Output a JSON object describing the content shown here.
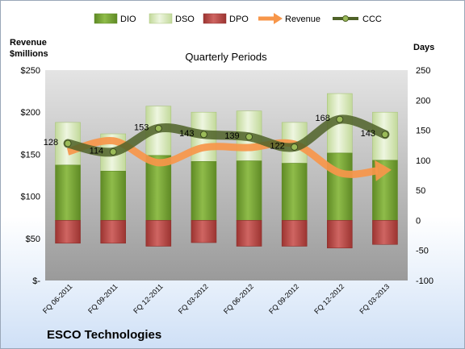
{
  "chart_data": {
    "type": "bar",
    "title": "Quarterly Periods",
    "company": "ESCO Technologies",
    "y_left_label_line1": "Revenue",
    "y_left_label_line2": "$millions",
    "y_right_label": "Days",
    "ylim_left": [
      0,
      250
    ],
    "ylim_right": [
      -100,
      250
    ],
    "y_left_ticks": [
      "$-",
      "$50",
      "$100",
      "$150",
      "$200",
      "$250"
    ],
    "y_left_tick_values": [
      0,
      50,
      100,
      150,
      200,
      250
    ],
    "y_right_ticks": [
      "-100",
      "-50",
      "0",
      "50",
      "100",
      "150",
      "200",
      "250"
    ],
    "y_right_tick_values": [
      -100,
      -50,
      0,
      50,
      100,
      150,
      200,
      250
    ],
    "grid": false,
    "legend_position": "top",
    "categories": [
      "FQ 06-2011",
      "FQ 09-2011",
      "FQ 12-2011",
      "FQ 03-2012",
      "FQ 06-2012",
      "FQ 09-2012",
      "FQ 12-2012",
      "FQ 03-2013"
    ],
    "series": [
      {
        "name": "DIO",
        "axis": "right",
        "kind": "bar",
        "color": "#7aa23a",
        "values": [
          92,
          82,
          108,
          98,
          99,
          95,
          112,
          100
        ]
      },
      {
        "name": "DSO",
        "axis": "right",
        "kind": "bar",
        "color": "#d6e8b4",
        "values": [
          71,
          62,
          82,
          82,
          83,
          68,
          99,
          80
        ]
      },
      {
        "name": "DPO",
        "axis": "right",
        "kind": "bar",
        "color": "#c0504d",
        "values": [
          -38,
          -38,
          -43,
          -37,
          -43,
          -43,
          -46,
          -40
        ]
      },
      {
        "name": "Revenue",
        "axis": "left",
        "kind": "line",
        "color": "#f7964a",
        "values": [
          153,
          166,
          140,
          158,
          158,
          162,
          128,
          131
        ]
      },
      {
        "name": "CCC",
        "axis": "right",
        "kind": "line",
        "color": "#4f6228",
        "values": [
          128,
          114,
          153,
          143,
          139,
          122,
          168,
          143
        ]
      }
    ],
    "data_labels": [
      "128",
      "114",
      "153",
      "143",
      "139",
      "122",
      "168",
      "143"
    ],
    "colors": {
      "plot_background_top": "#e2e2e2",
      "plot_background_bottom": "#9c9c9c",
      "dio": "#7aa23a",
      "dso": "#d6e8b4",
      "dpo": "#c0504d",
      "revenue": "#f7964a",
      "ccc": "#4f6228"
    }
  }
}
